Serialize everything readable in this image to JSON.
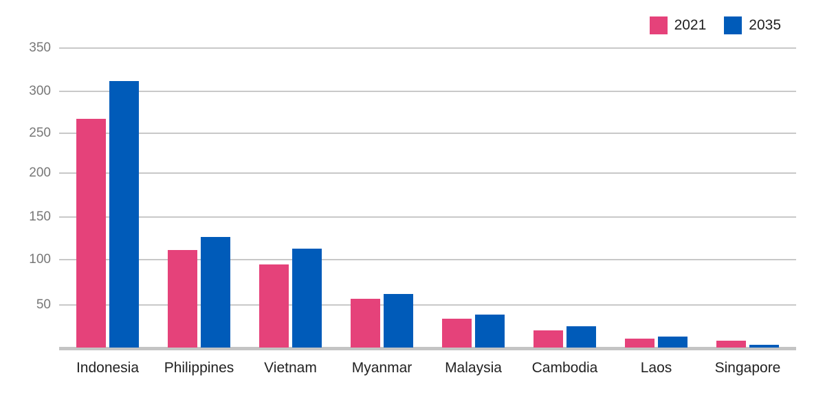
{
  "colors": {
    "series_2021": "#e5427a",
    "series_2035": "#005bb9",
    "grid": "#c8c8c8",
    "tick_text": "#777777"
  },
  "legend": [
    {
      "label": "2021",
      "color": "#e5427a"
    },
    {
      "label": "2035",
      "color": "#005bb9"
    }
  ],
  "chart_data": {
    "type": "bar",
    "title": "",
    "xlabel": "",
    "ylabel": "",
    "categories": [
      "Indonesia",
      "Philippines",
      "Vietnam",
      "Myanmar",
      "Malaysia",
      "Cambodia",
      "Laos",
      "Singapore"
    ],
    "series": [
      {
        "name": "2021",
        "color": "#e5427a",
        "values": [
          267,
          111,
          95,
          57,
          34,
          21,
          12,
          9
        ]
      },
      {
        "name": "2035",
        "color": "#005bb9",
        "values": [
          312,
          127,
          113,
          62,
          39,
          26,
          14,
          5
        ]
      }
    ],
    "yticks": [
      "350",
      "300",
      "250",
      "200",
      "150",
      "100",
      "50"
    ],
    "ylim": [
      0,
      350
    ],
    "grid": true,
    "legend_position": "top-right"
  }
}
